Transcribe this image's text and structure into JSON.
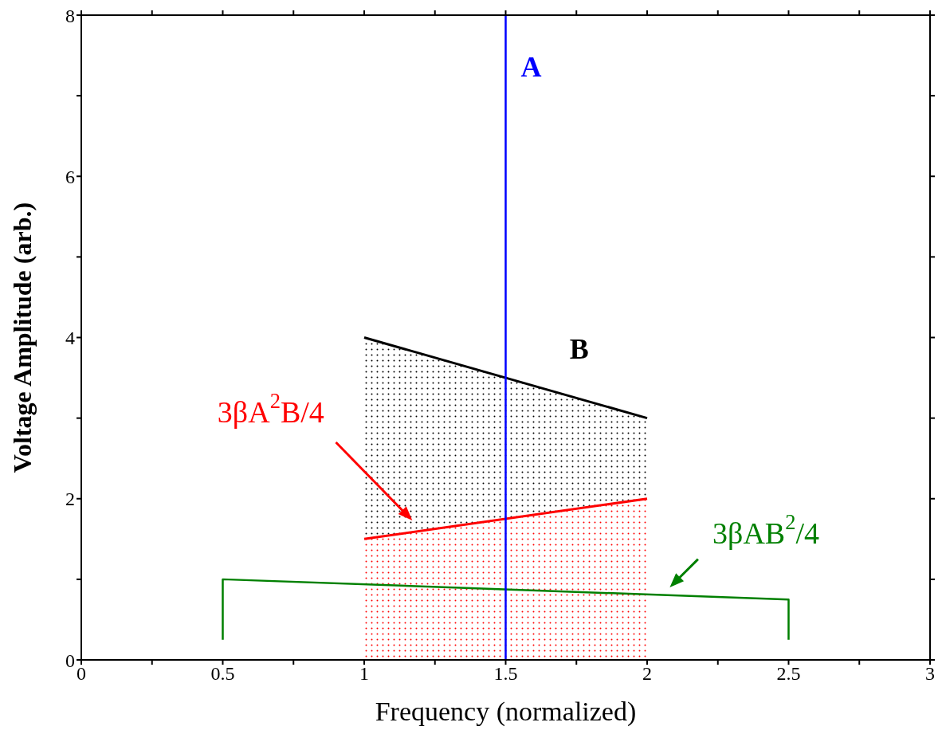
{
  "chart_data": {
    "type": "area",
    "xlabel": "Frequency (normalized)",
    "ylabel": "Voltage Amplitude (arb.)",
    "xlim": [
      0,
      3
    ],
    "ylim": [
      0,
      8
    ],
    "xticks": [
      0,
      {
        "value": 0.25,
        "label": null
      },
      0.5,
      {
        "value": 0.75,
        "label": null
      },
      1,
      {
        "value": 1.25,
        "label": null
      },
      1.5,
      {
        "value": 1.75,
        "label": null
      },
      2,
      {
        "value": 2.25,
        "label": null
      },
      2.5,
      {
        "value": 2.75,
        "label": null
      },
      3
    ],
    "yticks": [
      0,
      {
        "value": 1,
        "label": null
      },
      2,
      {
        "value": 3,
        "label": null
      },
      4,
      {
        "value": 5,
        "label": null
      },
      6,
      {
        "value": 7,
        "label": null
      },
      8
    ],
    "series": [
      {
        "name": "B",
        "color": "#000000",
        "x": [
          1,
          2
        ],
        "values": [
          4,
          3
        ]
      },
      {
        "name": "3βA$^{2}$B/4",
        "color": "#ff0000",
        "x": [
          1,
          2
        ],
        "values": [
          1.5,
          2
        ]
      },
      {
        "name": "3βAB$^{2}$/4",
        "type": "line",
        "color": "#008000",
        "x": [
          0.5,
          0.5,
          2.5,
          2.5
        ],
        "values": [
          0.25,
          1,
          0.75,
          0.25
        ]
      },
      {
        "name": "A",
        "type": "line",
        "color": "#0000ff",
        "x": [
          1.5,
          1.5
        ],
        "values": [
          0,
          8
        ]
      }
    ]
  }
}
